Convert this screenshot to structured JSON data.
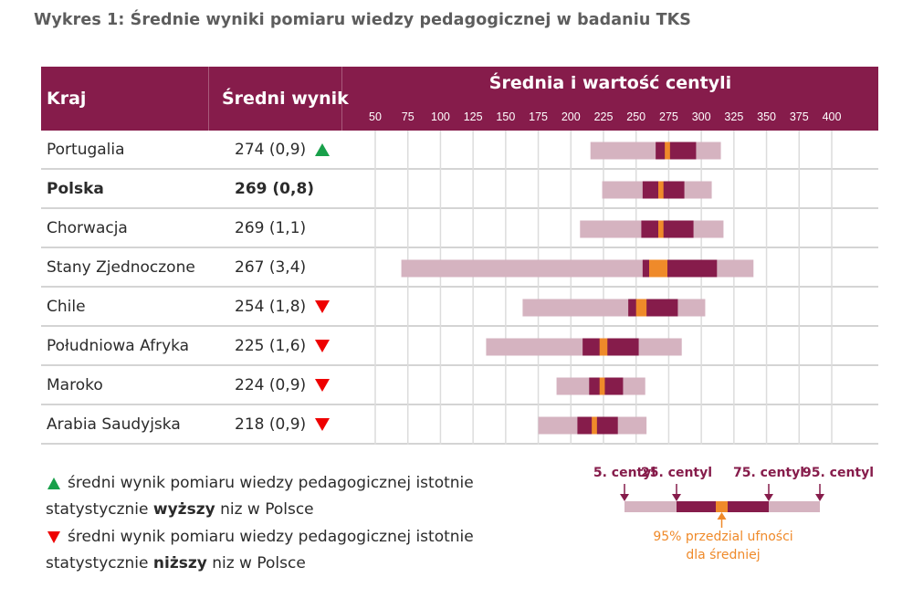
{
  "title": "Wykres 1: Średnie wyniki pomiaru wiedzy pedagogicznej w badaniu TKS",
  "header": {
    "col_country": "Kraj",
    "col_score": "Średni wynik",
    "col_chart": "Średnia i wartość centyli"
  },
  "colors": {
    "header_bg": "#861c4b",
    "percentile_5_95": "#d5b3c0",
    "percentile_25_75": "#861c4b",
    "ci_mean": "#ef8a2a",
    "sig_higher": "#18a04a",
    "sig_lower": "#ee0000"
  },
  "chart_data": {
    "type": "table",
    "title": "Średnie wyniki pomiaru wiedzy pedagogicznej w badaniu TKS",
    "xlabel": "Średnia i wartość centyli",
    "x_ticks": [
      50,
      75,
      100,
      125,
      150,
      175,
      200,
      225,
      250,
      275,
      300,
      325,
      350,
      375,
      400
    ],
    "xlim": [
      50,
      400
    ],
    "grid": true,
    "rows": [
      {
        "country": "Portugalia",
        "score_label": "274 (0,9)",
        "mean": 274,
        "se": 0.9,
        "significance": "higher",
        "bold": false,
        "p5": 215,
        "p25": 265,
        "ci_low": 272,
        "ci_high": 276,
        "p75": 296,
        "p95": 315
      },
      {
        "country": "Polska",
        "score_label": "269 (0,8)",
        "mean": 269,
        "se": 0.8,
        "significance": "none",
        "bold": true,
        "p5": 224,
        "p25": 255,
        "ci_low": 267,
        "ci_high": 271,
        "p75": 287,
        "p95": 308
      },
      {
        "country": "Chorwacja",
        "score_label": "269 (1,1)",
        "mean": 269,
        "se": 1.1,
        "significance": "none",
        "bold": false,
        "p5": 207,
        "p25": 254,
        "ci_low": 267,
        "ci_high": 271,
        "p75": 294,
        "p95": 317
      },
      {
        "country": "Stany Zjednoczone",
        "score_label": "267 (3,4)",
        "mean": 267,
        "se": 3.4,
        "significance": "none",
        "bold": false,
        "p5": 70,
        "p25": 255,
        "ci_low": 260,
        "ci_high": 274,
        "p75": 312,
        "p95": 340
      },
      {
        "country": "Chile",
        "score_label": "254 (1,8)",
        "mean": 254,
        "se": 1.8,
        "significance": "lower",
        "bold": false,
        "p5": 163,
        "p25": 244,
        "ci_low": 250,
        "ci_high": 258,
        "p75": 282,
        "p95": 303
      },
      {
        "country": "Południowa Afryka",
        "score_label": "225 (1,6)",
        "mean": 225,
        "se": 1.6,
        "significance": "lower",
        "bold": false,
        "p5": 135,
        "p25": 209,
        "ci_low": 222,
        "ci_high": 228,
        "p75": 252,
        "p95": 285
      },
      {
        "country": "Maroko",
        "score_label": "224 (0,9)",
        "mean": 224,
        "se": 0.9,
        "significance": "lower",
        "bold": false,
        "p5": 189,
        "p25": 214,
        "ci_low": 222,
        "ci_high": 226,
        "p75": 240,
        "p95": 257
      },
      {
        "country": "Arabia Saudyjska",
        "score_label": "218 (0,9)",
        "mean": 218,
        "se": 0.9,
        "significance": "lower",
        "bold": false,
        "p5": 175,
        "p25": 205,
        "ci_low": 216,
        "ci_high": 220,
        "p75": 236,
        "p95": 258
      }
    ]
  },
  "legend": {
    "higher_line1": "średni wynik pomiaru wiedzy pedagogicznej istotnie",
    "higher_line2_pre": "statystycznie ",
    "higher_line2_bold": "wyższy",
    "higher_line2_post": " niz w Polsce",
    "lower_line1": "średni wynik pomiaru wiedzy pedagogicznej istotnie",
    "lower_line2_pre": "statystycznie ",
    "lower_line2_bold": "niższy",
    "lower_line2_post": " niz w Polsce"
  },
  "key": {
    "p5_label": "5. centyl",
    "p25_label": "25. centyl",
    "p75_label": "75. centyl",
    "p95_label": "95. centyl",
    "ci_label_line1": "95% przedzial ufności",
    "ci_label_line2": "dla średniej"
  }
}
